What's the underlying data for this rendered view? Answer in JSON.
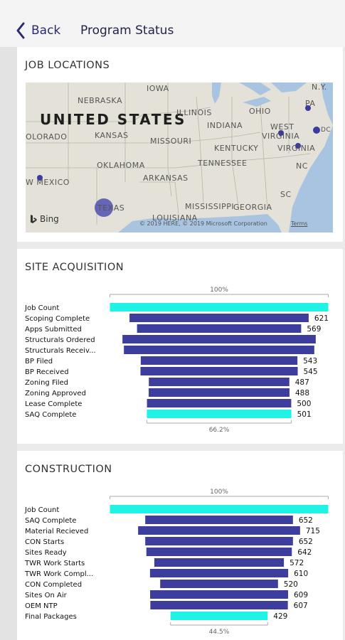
{
  "header": {
    "back_label": "Back",
    "title": "Program Status"
  },
  "job_locations": {
    "title": "JOB LOCATIONS",
    "map": {
      "country_label": "UNITED STATES",
      "place_labels": [
        "NEBRASKA",
        "IOWA",
        "N.Y.",
        "ILLINOIS",
        "OHIO",
        "PA",
        "INDIANA",
        "WEST",
        "VIRGINIA",
        "OLORADO",
        "KANSAS",
        "MISSOURI",
        "KENTUCKY",
        "VIRGINIA",
        "OKLAHOMA",
        "TENNESSEE",
        "NC",
        "ARKANSAS",
        "W MEXICO",
        "MISSISSIPPI",
        "GEORGIA",
        "SC",
        "TEXAS",
        "LOUISIANA",
        "DC"
      ],
      "attribution": "Bing",
      "copyright": "© 2019 HERE, © 2019 Microsoft Corporation",
      "terms": "Terms"
    }
  },
  "site_acquisition": {
    "title": "SITE ACQUISITION",
    "chart_data": {
      "type": "bar",
      "top_percent_label": "100%",
      "bottom_percent_label": "66.2%",
      "categories": [
        "Job Count",
        "Scoping Complete",
        "Apps Submitted",
        "Structurals Ordered",
        "Structurals Receiv...",
        "BP Filed",
        "BP Received",
        "Zoning Filed",
        "Zoning Approved",
        "Lease Complete",
        "SAQ Complete"
      ],
      "values": [
        757,
        621,
        569,
        670,
        660,
        543,
        545,
        487,
        488,
        500,
        501
      ],
      "value_labels": [
        "",
        "621",
        "569",
        "",
        "",
        "543",
        "545",
        "487",
        "488",
        "500",
        "501"
      ],
      "highlight": [
        true,
        false,
        false,
        false,
        false,
        false,
        false,
        false,
        false,
        false,
        true
      ],
      "colors": {
        "highlight": "#20f2e6",
        "bar": "#3d3d9e"
      }
    }
  },
  "construction": {
    "title": "CONSTRUCTION",
    "chart_data": {
      "type": "bar",
      "top_percent_label": "100%",
      "bottom_percent_label": "44.5%",
      "categories": [
        "Job Count",
        "SAQ Complete",
        "Material Recieved",
        "CON Starts",
        "Sites Ready",
        "TWR Work Starts",
        "TWR Work Compl...",
        "CON Completed",
        "Sites On Air",
        "OEM NTP",
        "Final Packages"
      ],
      "values": [
        964,
        652,
        715,
        652,
        642,
        572,
        610,
        520,
        609,
        607,
        429
      ],
      "value_labels": [
        "",
        "652",
        "715",
        "652",
        "642",
        "572",
        "610",
        "520",
        "609",
        "607",
        "429"
      ],
      "highlight": [
        true,
        false,
        false,
        false,
        false,
        false,
        false,
        false,
        false,
        false,
        true
      ],
      "colors": {
        "highlight": "#20f2e6",
        "bar": "#3d3d9e"
      }
    }
  }
}
